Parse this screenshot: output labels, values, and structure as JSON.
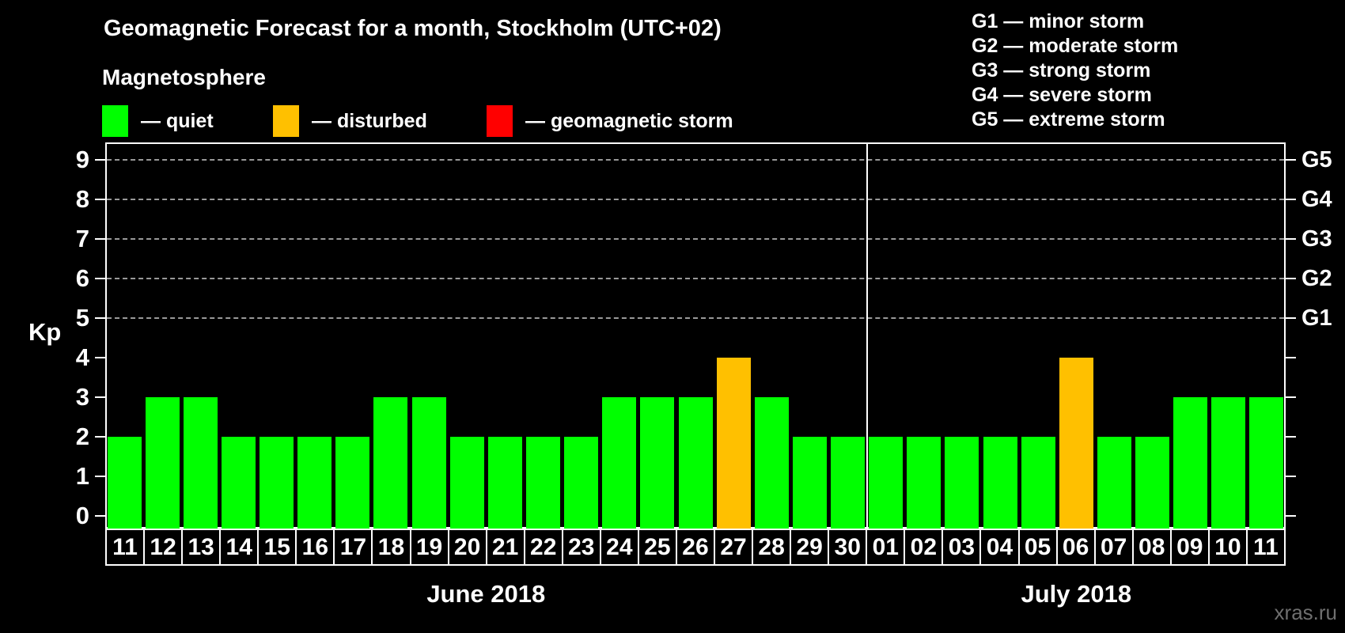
{
  "header": {
    "title": "Geomagnetic Forecast for a month, Stockholm (UTC+02)",
    "subtitle": "Magnetosphere"
  },
  "legend": {
    "items": [
      {
        "key": "quiet",
        "label": "— quiet",
        "color": "#00FF00"
      },
      {
        "key": "disturbed",
        "label": "— disturbed",
        "color": "#FFC000"
      },
      {
        "key": "storm",
        "label": "— geomagnetic storm",
        "color": "#FF0000"
      }
    ]
  },
  "g_legend": {
    "lines": [
      "G1 — minor storm",
      "G2 — moderate storm",
      "G3 — strong storm",
      "G4 — severe storm",
      "G5 — extreme storm"
    ]
  },
  "chart_data": {
    "type": "bar",
    "title": "Geomagnetic Forecast for a month, Stockholm (UTC+02)",
    "ylabel": "Kp",
    "ylim": [
      0,
      9
    ],
    "yticks": [
      0,
      1,
      2,
      3,
      4,
      5,
      6,
      7,
      8,
      9
    ],
    "gridlines_at": [
      5,
      6,
      7,
      8,
      9
    ],
    "grid": "dashed",
    "legend_position": "top-left",
    "right_axis_labels": [
      {
        "kp": 5,
        "label": "G1"
      },
      {
        "kp": 6,
        "label": "G2"
      },
      {
        "kp": 7,
        "label": "G3"
      },
      {
        "kp": 8,
        "label": "G4"
      },
      {
        "kp": 9,
        "label": "G5"
      }
    ],
    "months": [
      {
        "label": "June 2018",
        "days": 20
      },
      {
        "label": "July 2018",
        "days": 11
      }
    ],
    "categories": [
      "11",
      "12",
      "13",
      "14",
      "15",
      "16",
      "17",
      "18",
      "19",
      "20",
      "21",
      "22",
      "23",
      "24",
      "25",
      "26",
      "27",
      "28",
      "29",
      "30",
      "01",
      "02",
      "03",
      "04",
      "05",
      "06",
      "07",
      "08",
      "09",
      "10",
      "11"
    ],
    "values": [
      2,
      3,
      3,
      2,
      2,
      2,
      2,
      3,
      3,
      2,
      2,
      2,
      2,
      3,
      3,
      3,
      4,
      3,
      2,
      2,
      2,
      2,
      2,
      2,
      2,
      4,
      2,
      2,
      3,
      3,
      3
    ],
    "statuses": [
      "quiet",
      "quiet",
      "quiet",
      "quiet",
      "quiet",
      "quiet",
      "quiet",
      "quiet",
      "quiet",
      "quiet",
      "quiet",
      "quiet",
      "quiet",
      "quiet",
      "quiet",
      "quiet",
      "disturbed",
      "quiet",
      "quiet",
      "quiet",
      "quiet",
      "quiet",
      "quiet",
      "quiet",
      "quiet",
      "disturbed",
      "quiet",
      "quiet",
      "quiet",
      "quiet",
      "quiet"
    ],
    "colors": {
      "quiet": "#00FF00",
      "disturbed": "#FFC000",
      "storm": "#FF0000"
    },
    "axis_color": "#FFFFFF",
    "gridline_color": "#999999"
  },
  "footer": {
    "watermark": "xras.ru"
  }
}
